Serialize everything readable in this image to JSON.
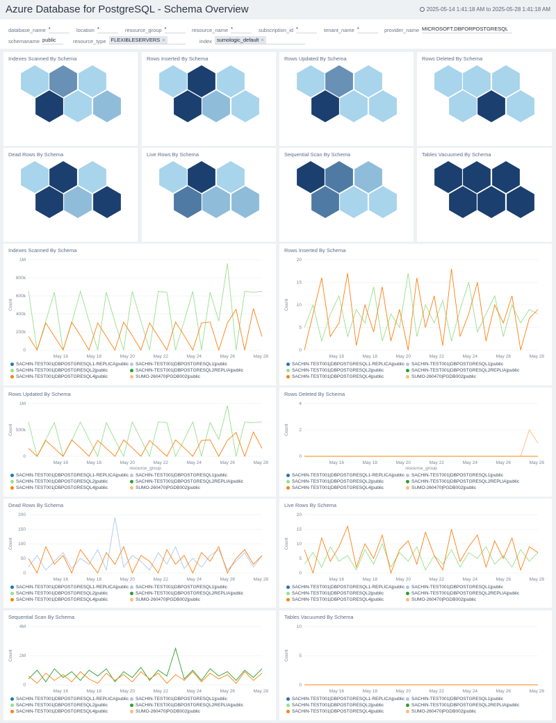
{
  "header": {
    "title": "Azure Database for PostgreSQL - Schema Overview",
    "time_range": "2025-05-14 1:41:18 AM to 2025-05-28 1:41:18 AM",
    "icon": "clock-icon"
  },
  "filters": [
    {
      "label": "database_name",
      "value": "*"
    },
    {
      "label": "location",
      "value": "*"
    },
    {
      "label": "resource_group",
      "value": "*"
    },
    {
      "label": "resource_name",
      "value": "*"
    },
    {
      "label": "subscription_id",
      "value": "*"
    },
    {
      "label": "tenant_name",
      "value": "*"
    },
    {
      "label": "provider_name",
      "value": "MICROSOFT.DBFORPOSTGRESQL"
    },
    {
      "label": "schemaname",
      "value": "public"
    },
    {
      "label": "resource_type",
      "chip": "FLEXIBLESERVERS"
    },
    {
      "label": "index",
      "chip": "sumologic_default"
    }
  ],
  "colors": {
    "hex_light": "#a8d4ec",
    "hex_mid_light": "#8fbcd9",
    "hex_mid": "#6990b5",
    "hex_mid_dark": "#4f7aa4",
    "hex_dark": "#1b3f6e"
  },
  "honeycombs": [
    {
      "title": "Indexes Scanned By Schema",
      "levels": [
        "light",
        "mid",
        "light",
        "dark",
        "light",
        "mid_light"
      ]
    },
    {
      "title": "Rows Inserted By Schema",
      "levels": [
        "light",
        "dark",
        "light",
        "dark",
        "mid_light",
        "light"
      ]
    },
    {
      "title": "Rows Updated By Schema",
      "levels": [
        "light",
        "mid",
        "light",
        "dark",
        "light",
        "light"
      ]
    },
    {
      "title": "Rows Deleted By Schema",
      "levels": [
        "light",
        "light",
        "light",
        "light",
        "dark",
        "light"
      ]
    },
    {
      "title": "Dead Rows By Schema",
      "levels": [
        "light",
        "dark",
        "light",
        "dark",
        "mid_light",
        "dark"
      ]
    },
    {
      "title": "Live Rows By Schema",
      "levels": [
        "light",
        "dark",
        "light",
        "mid_dark",
        "mid_light",
        "mid_light"
      ]
    },
    {
      "title": "Sequential Scan By Schema",
      "levels": [
        "dark",
        "mid_dark",
        "mid_light",
        "mid_dark",
        "light",
        "light"
      ]
    },
    {
      "title": "Tables Vacuumed By Schema",
      "levels": [
        "dark",
        "dark",
        "dark",
        "dark",
        "dark",
        "dark"
      ]
    }
  ],
  "legend": [
    {
      "name": "SACHIN-TEST001|DBPOSTGRESQL1-REPLICA|public",
      "color": "#1f77b4"
    },
    {
      "name": "SACHIN-TEST001|DBPOSTGRESQL1|public",
      "color": "#aec7e8"
    },
    {
      "name": "SACHIN-TEST001|DBPOSTGRESQL2|public",
      "color": "#98df8a"
    },
    {
      "name": "SACHIN-TEST001|DBPOSTGRESQL2REPLIA|public",
      "color": "#2ca02c"
    },
    {
      "name": "SACHIN-TEST001|DBPOSTGRESQL4|public",
      "color": "#ff7f0e"
    },
    {
      "name": "SUMO-260470|PGDB002|public",
      "color": "#ffbb78"
    }
  ],
  "chart_data": [
    {
      "type": "line",
      "title": "Indexes Scanned By Schema",
      "ylabel": "Count",
      "xlabel": "",
      "ylim": [
        0,
        1000000
      ],
      "yticks": [
        0,
        200000,
        400000,
        600000,
        800000,
        1000000
      ],
      "ytick_labels": [
        "0",
        "200k",
        "400k",
        "600k",
        "800k",
        "1M"
      ],
      "xtick_labels": [
        "May 16",
        "May 18",
        "May 20",
        "May 22",
        "May 24",
        "May 26",
        "May 28"
      ],
      "grid": true,
      "series": [
        {
          "name": "SACHIN-TEST001|DBPOSTGRESQL2|public",
          "values": [
            650000,
            0,
            320000,
            640000,
            0,
            300000,
            650000,
            320000,
            0,
            640000,
            310000,
            0,
            650000,
            320000,
            0,
            650000,
            640000,
            0,
            320000,
            650000,
            0,
            640000,
            320000,
            960000,
            0,
            650000,
            640000,
            650000
          ]
        },
        {
          "name": "SACHIN-TEST001|DBPOSTGRESQL4|public",
          "values": [
            150000,
            0,
            300000,
            150000,
            0,
            310000,
            160000,
            0,
            300000,
            150000,
            0,
            310000,
            160000,
            0,
            300000,
            150000,
            0,
            310000,
            160000,
            0,
            300000,
            310000,
            0,
            300000,
            450000,
            0,
            460000,
            150000
          ]
        }
      ]
    },
    {
      "type": "line",
      "title": "Rows Inserted By Schema",
      "ylabel": "Count",
      "xlabel": "",
      "ylim": [
        0,
        20
      ],
      "yticks": [
        0,
        5,
        10,
        15,
        20
      ],
      "ytick_labels": [
        "0",
        "5",
        "10",
        "15",
        "20"
      ],
      "xtick_labels": [
        "May 16",
        "May 18",
        "May 20",
        "May 22",
        "May 24",
        "May 26",
        "May 28"
      ],
      "grid": true,
      "series": [
        {
          "name": "SACHIN-TEST001|DBPOSTGRESQL2|public",
          "values": [
            5,
            10,
            2,
            8,
            12,
            3,
            9,
            6,
            14,
            2,
            8,
            5,
            17,
            3,
            10,
            6,
            11,
            2,
            9,
            15,
            4,
            8,
            12,
            3,
            10,
            6,
            9,
            8
          ]
        },
        {
          "name": "SACHIN-TEST001|DBPOSTGRESQL4|public",
          "values": [
            0,
            8,
            16,
            3,
            6,
            17,
            1,
            10,
            4,
            14,
            2,
            9,
            0,
            16,
            5,
            12,
            1,
            18,
            3,
            8,
            15,
            2,
            10,
            6,
            12,
            0,
            7,
            9
          ]
        }
      ]
    },
    {
      "type": "line",
      "title": "Rows Updated By Schema",
      "ylabel": "Count",
      "xlabel": "resource_group",
      "ylim": [
        0,
        1000000
      ],
      "yticks": [
        0,
        500000,
        1000000
      ],
      "ytick_labels": [
        "0",
        "500k",
        "1M"
      ],
      "xtick_labels": [
        "May 16",
        "May 18",
        "May 20",
        "May 22",
        "May 24",
        "May 26",
        "May 28"
      ],
      "grid": true,
      "series": [
        {
          "name": "SACHIN-TEST001|DBPOSTGRESQL2|public",
          "values": [
            650000,
            0,
            320000,
            640000,
            0,
            300000,
            650000,
            320000,
            0,
            640000,
            310000,
            0,
            650000,
            320000,
            0,
            650000,
            640000,
            0,
            320000,
            650000,
            0,
            640000,
            320000,
            960000,
            0,
            650000,
            640000,
            650000
          ]
        },
        {
          "name": "SACHIN-TEST001|DBPOSTGRESQL4|public",
          "values": [
            150000,
            0,
            300000,
            150000,
            0,
            310000,
            160000,
            0,
            300000,
            150000,
            0,
            310000,
            160000,
            0,
            300000,
            150000,
            0,
            310000,
            160000,
            0,
            300000,
            310000,
            0,
            300000,
            450000,
            0,
            460000,
            150000
          ]
        }
      ]
    },
    {
      "type": "line",
      "title": "Rows Deleted By Schema",
      "ylabel": "Count",
      "xlabel": "resource_group",
      "ylim": [
        0,
        4
      ],
      "yticks": [
        0,
        2,
        4
      ],
      "ytick_labels": [
        "0",
        "2",
        "4"
      ],
      "xtick_labels": [
        "May 16",
        "May 18",
        "May 20",
        "May 22",
        "May 24",
        "May 26",
        "May 28"
      ],
      "grid": true,
      "series": [
        {
          "name": "SUMO-260470|PGDB002|public",
          "values": [
            0,
            0,
            0,
            0,
            0,
            0,
            0,
            0,
            0,
            0,
            0,
            0,
            0,
            0,
            0,
            0,
            0,
            0,
            0,
            0,
            0,
            0,
            0,
            0,
            0,
            0,
            2,
            1
          ]
        },
        {
          "name": "SACHIN-TEST001|DBPOSTGRESQL4|public",
          "values": [
            0,
            0,
            0,
            0,
            0,
            0,
            0,
            0,
            0,
            0,
            0,
            0,
            0,
            0,
            0,
            0,
            0,
            0,
            0,
            0,
            0,
            0,
            0,
            0,
            0,
            0,
            0,
            0
          ]
        }
      ]
    },
    {
      "type": "line",
      "title": "Dead Rows By Schema",
      "ylabel": "Count",
      "xlabel": "",
      "ylim": [
        0,
        200
      ],
      "yticks": [
        0,
        50,
        100,
        150,
        200
      ],
      "ytick_labels": [
        "0",
        "50",
        "100",
        "150",
        "200"
      ],
      "xtick_labels": [
        "May 16",
        "May 18",
        "May 20",
        "May 22",
        "May 24",
        "May 26",
        "May 28"
      ],
      "grid": true,
      "series": [
        {
          "name": "SACHIN-TEST001|DBPOSTGRESQL1|public",
          "values": [
            20,
            60,
            10,
            40,
            70,
            15,
            50,
            30,
            80,
            10,
            190,
            20,
            60,
            40,
            10,
            70,
            30,
            90,
            15,
            50,
            20,
            60,
            80,
            10,
            40,
            70,
            20,
            60
          ]
        },
        {
          "name": "SACHIN-TEST001|DBPOSTGRESQL4|public",
          "values": [
            50,
            0,
            90,
            30,
            60,
            0,
            80,
            40,
            0,
            70,
            30,
            90,
            0,
            60,
            40,
            0,
            80,
            30,
            60,
            0,
            70,
            40,
            90,
            0,
            50,
            80,
            30,
            60
          ]
        }
      ]
    },
    {
      "type": "line",
      "title": "Live Rows By Schema",
      "ylabel": "Count",
      "xlabel": "",
      "ylim": [
        0,
        20
      ],
      "yticks": [
        0,
        5,
        10,
        15,
        20
      ],
      "ytick_labels": [
        "0",
        "5",
        "10",
        "15",
        "20"
      ],
      "xtick_labels": [
        "May 16",
        "May 18",
        "May 20",
        "May 22",
        "May 24",
        "May 26",
        "May 28"
      ],
      "grid": true,
      "series": [
        {
          "name": "SACHIN-TEST001|DBPOSTGRESQL2|public",
          "values": [
            3,
            7,
            2,
            9,
            4,
            6,
            1,
            8,
            3,
            10,
            2,
            7,
            4,
            9,
            1,
            6,
            3,
            8,
            2,
            7,
            5,
            9,
            3,
            6,
            2,
            8,
            4,
            7
          ]
        },
        {
          "name": "SACHIN-TEST001|DBPOSTGRESQL4|public",
          "values": [
            8,
            0,
            12,
            4,
            9,
            16,
            2,
            10,
            5,
            13,
            0,
            8,
            11,
            3,
            14,
            6,
            1,
            15,
            4,
            9,
            13,
            2,
            11,
            5,
            12,
            1,
            9,
            7
          ]
        }
      ]
    },
    {
      "type": "line",
      "title": "Sequential Scan By Schema",
      "ylabel": "Count",
      "xlabel": "",
      "ylim": [
        0,
        4000000
      ],
      "yticks": [
        0,
        2000000,
        4000000
      ],
      "ytick_labels": [
        "0",
        "2M",
        "4M"
      ],
      "xtick_labels": [
        "May 16",
        "May 18",
        "May 20",
        "May 22",
        "May 24",
        "May 26",
        "May 28"
      ],
      "grid": true,
      "series": [
        {
          "name": "SACHIN-TEST001|DBPOSTGRESQL2REPLIA|public",
          "values": [
            400000,
            1000000,
            200000,
            1100000,
            500000,
            900000,
            300000,
            1000000,
            600000,
            1100000,
            200000,
            900000,
            500000,
            1200000,
            300000,
            1000000,
            600000,
            2500000,
            400000,
            1000000,
            300000,
            1100000,
            600000,
            900000,
            300000,
            1000000,
            500000,
            1100000
          ]
        },
        {
          "name": "SACHIN-TEST001|DBPOSTGRESQL4|public",
          "values": [
            600000,
            100000,
            800000,
            300000,
            700000,
            200000,
            900000,
            400000,
            100000,
            800000,
            300000,
            700000,
            200000,
            900000,
            400000,
            800000,
            100000,
            700000,
            300000,
            900000,
            200000,
            800000,
            400000,
            700000,
            100000,
            900000,
            300000,
            800000
          ]
        }
      ]
    },
    {
      "type": "line",
      "title": "Tables Vacuumed By Schema",
      "ylabel": "Count",
      "xlabel": "",
      "ylim": [
        0,
        10
      ],
      "yticks": [
        0,
        5,
        10
      ],
      "ytick_labels": [
        "0",
        "5",
        "10"
      ],
      "xtick_labels": [
        "May 16",
        "May 18",
        "May 20",
        "May 22",
        "May 24",
        "May 26",
        "May 28"
      ],
      "grid": true,
      "series": [
        {
          "name": "SACHIN-TEST001|DBPOSTGRESQL4|public",
          "values": [
            0,
            0,
            0,
            0,
            0,
            0,
            0,
            0,
            0,
            0,
            0,
            0,
            0,
            0,
            0,
            0,
            0,
            0,
            0,
            0,
            0,
            0,
            0,
            0,
            0,
            0,
            0,
            0
          ]
        }
      ]
    }
  ]
}
